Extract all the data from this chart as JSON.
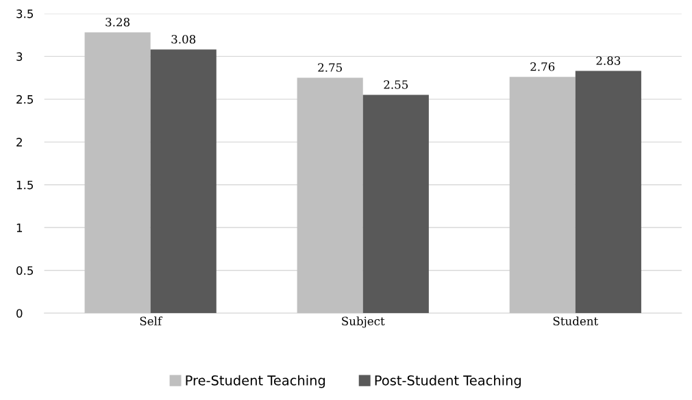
{
  "chart_data": {
    "type": "bar",
    "categories": [
      "Self",
      "Subject",
      "Student"
    ],
    "series": [
      {
        "name": "Pre-Student Teaching",
        "color": "#bfbfbf",
        "values": [
          3.28,
          2.75,
          2.76
        ]
      },
      {
        "name": "Post-Student Teaching",
        "color": "#595959",
        "values": [
          3.08,
          2.55,
          2.83
        ]
      }
    ],
    "ylim": [
      0,
      3.5
    ],
    "yticks": [
      {
        "value": 0,
        "label": "0"
      },
      0.5,
      1,
      1.5,
      2,
      2.5,
      3,
      3.5
    ],
    "grid": "y",
    "legend": "bottom",
    "data_labels": true
  }
}
